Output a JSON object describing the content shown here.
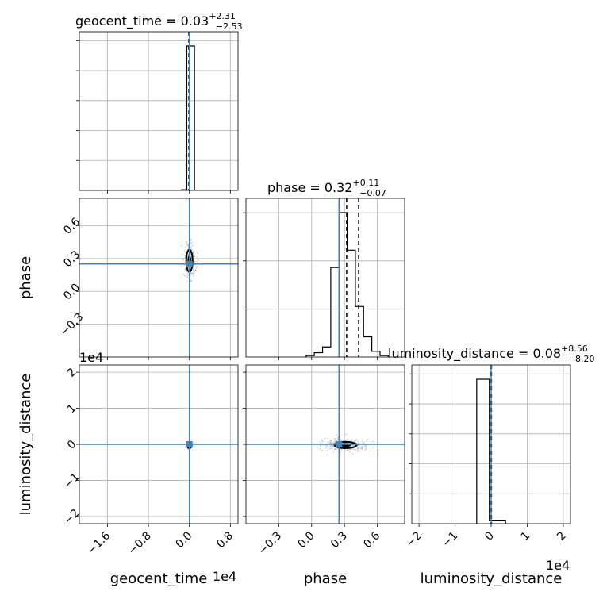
{
  "figure": {
    "type": "corner-plot"
  },
  "colors": {
    "truth": "#4682b4",
    "hist": "#000000",
    "grid": "#b0b0b0",
    "samples": "#9a9a9a",
    "quantile": "#000000"
  },
  "titles": {
    "geocent_time": {
      "prefix": "geocent_time = 0.03",
      "plus": "+2.31",
      "minus": "−2.53"
    },
    "phase": {
      "prefix": "phase = 0.32",
      "plus": "+0.11",
      "minus": "−0.07"
    },
    "luminosity_distance": {
      "prefix": "luminosity_distance = 0.08",
      "plus": "+8.56",
      "minus": "−8.20"
    }
  },
  "axis_labels": {
    "x_geocent_time": "geocent_time",
    "x_phase": "phase",
    "x_luminosity_distance": "luminosity_distance",
    "y_phase": "phase",
    "y_luminosity_distance": "luminosity_distance"
  },
  "offsets": {
    "x_geocent_time": "1e4",
    "x_luminosity_distance": "1e4",
    "y_luminosity_distance": "1e4"
  },
  "chart_data": [
    {
      "type": "bar",
      "panel": "geocent_time marginal",
      "x_label": "geocent_time",
      "xlim": [
        -2.15,
        0.95
      ],
      "bins": [
        {
          "x0": -0.15,
          "x1": -0.05,
          "h": 0.005
        },
        {
          "x0": -0.05,
          "x1": 0.1,
          "h": 1.0
        }
      ],
      "quantiles": [
        -0.01,
        0.003,
        0.004
      ],
      "truth": 0.0
    },
    {
      "type": "bar",
      "panel": "phase marginal",
      "x_label": "phase",
      "xlim": [
        -0.6,
        0.85
      ],
      "yticks_count": 3,
      "bins": [
        {
          "x0": -0.05,
          "x1": 0.025,
          "h": 0.01
        },
        {
          "x0": 0.025,
          "x1": 0.1,
          "h": 0.03
        },
        {
          "x0": 0.1,
          "x1": 0.175,
          "h": 0.07
        },
        {
          "x0": 0.175,
          "x1": 0.25,
          "h": 0.62
        },
        {
          "x0": 0.25,
          "x1": 0.325,
          "h": 1.0
        },
        {
          "x0": 0.325,
          "x1": 0.4,
          "h": 0.74
        },
        {
          "x0": 0.4,
          "x1": 0.475,
          "h": 0.35
        },
        {
          "x0": 0.475,
          "x1": 0.55,
          "h": 0.14
        },
        {
          "x0": 0.55,
          "x1": 0.625,
          "h": 0.04
        },
        {
          "x0": 0.625,
          "x1": 0.7,
          "h": 0.01
        }
      ],
      "quantiles": [
        0.25,
        0.32,
        0.43
      ],
      "truth": 0.25
    },
    {
      "type": "bar",
      "panel": "luminosity_distance marginal",
      "x_label": "luminosity_distance",
      "xlim": [
        -2.2,
        2.2
      ],
      "bins": [
        {
          "x0": -0.4,
          "x1": -0.05,
          "h": 1.0
        },
        {
          "x0": -0.05,
          "x1": 0.4,
          "h": 0.02
        }
      ],
      "quantiles": [
        -0.01,
        0.0008,
        0.009
      ],
      "truth": 0.0
    },
    {
      "type": "scatter",
      "panel": "phase vs geocent_time",
      "x_label": "geocent_time",
      "y_label": "phase",
      "xlim": [
        -2.15,
        0.95
      ],
      "ylim": [
        -0.6,
        0.85
      ],
      "xticks": [
        "−1.6",
        "−0.8",
        "0.0",
        "0.8"
      ],
      "xtick_values": [
        -1.6,
        -0.8,
        0.0,
        0.8
      ],
      "yticks": [
        "−0.3",
        "0.0",
        "0.3",
        "0.6"
      ],
      "ytick_values": [
        -0.3,
        0.0,
        0.3,
        0.6
      ],
      "truth": {
        "x": 0.0,
        "y": 0.25
      }
    },
    {
      "type": "scatter",
      "panel": "luminosity_distance vs geocent_time",
      "x_label": "geocent_time",
      "y_label": "luminosity_distance",
      "xlim": [
        -2.15,
        0.95
      ],
      "ylim": [
        -2.2,
        2.2
      ],
      "yticks": [
        "−2",
        "−1",
        "0",
        "1",
        "2"
      ],
      "ytick_values": [
        -2,
        -1,
        0,
        1,
        2
      ],
      "truth": {
        "x": 0.0,
        "y": 0.0
      }
    },
    {
      "type": "scatter",
      "panel": "luminosity_distance vs phase",
      "x_label": "phase",
      "y_label": "luminosity_distance",
      "xlim": [
        -0.6,
        0.85
      ],
      "ylim": [
        -2.2,
        2.2
      ],
      "xticks": [
        "−0.3",
        "0.0",
        "0.3",
        "0.6"
      ],
      "xtick_values": [
        -0.3,
        0.0,
        0.3,
        0.6
      ],
      "truth": {
        "x": 0.25,
        "y": 0.0
      }
    },
    {
      "type": "axis",
      "panel": "luminosity_distance x-axis",
      "xlim": [
        -2.2,
        2.2
      ],
      "xticks": [
        "−2",
        "−1",
        "0",
        "1",
        "2"
      ],
      "xtick_values": [
        -2,
        -1,
        0,
        1,
        2
      ]
    }
  ]
}
